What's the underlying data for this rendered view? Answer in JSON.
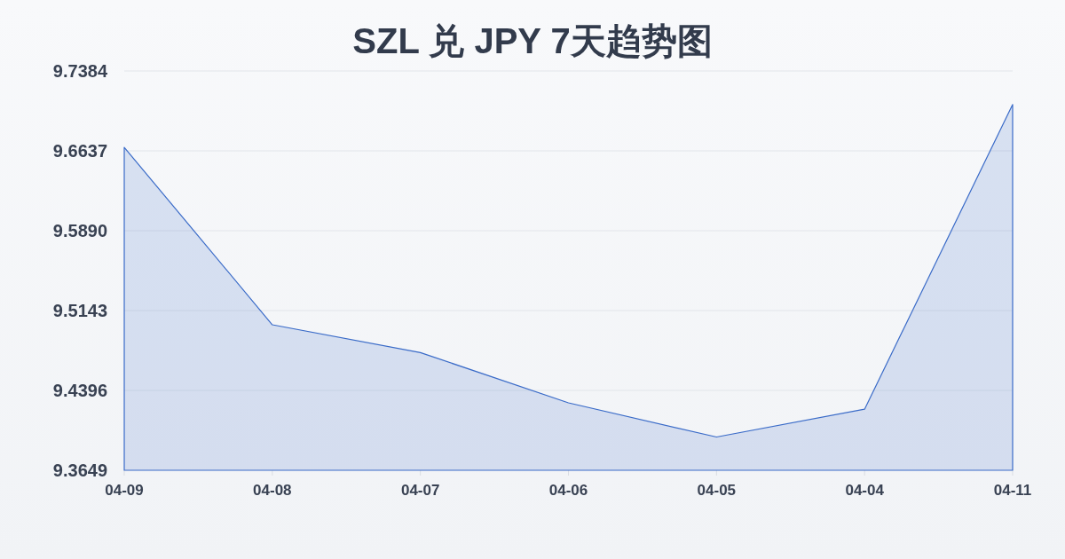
{
  "chart_data": {
    "type": "area",
    "title": "SZL 兑 JPY 7天趋势图",
    "categories": [
      "04-09",
      "04-08",
      "04-07",
      "04-06",
      "04-05",
      "04-04",
      "04-11"
    ],
    "series": [
      {
        "color": "#3a6bc8",
        "values": [
          9.667,
          9.501,
          9.475,
          9.428,
          9.396,
          9.422,
          9.707
        ]
      }
    ],
    "ylim": [
      9.3649,
      9.7384
    ],
    "yticks": [
      9.3649,
      9.4396,
      9.5143,
      {
        "value": 9.589,
        "label": "9.5890"
      },
      9.6637,
      9.7384
    ],
    "grid": "y"
  }
}
